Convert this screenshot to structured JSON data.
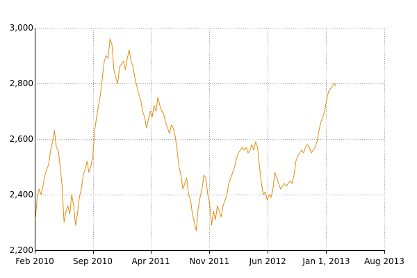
{
  "chart_data": {
    "type": "line",
    "title": "",
    "xlabel": "",
    "ylabel": "",
    "grid": true,
    "legend": "none",
    "line_color": "#e08a0a",
    "grid_color": "#999999",
    "ylim": [
      2200,
      3000
    ],
    "xlim": [
      "2010-02-01",
      "2013-08-01"
    ],
    "y_ticks": [
      {
        "value": 2200,
        "label": "2,200"
      },
      {
        "value": 2400,
        "label": "2,400"
      },
      {
        "value": 2600,
        "label": "2,600"
      },
      {
        "value": 2800,
        "label": "2,800"
      },
      {
        "value": 3000,
        "label": "3,000"
      }
    ],
    "x_ticks": [
      {
        "date": "2010-02-01",
        "label": "Feb 2010"
      },
      {
        "date": "2010-09-01",
        "label": "Sep 2010"
      },
      {
        "date": "2011-04-01",
        "label": "Apr 2011"
      },
      {
        "date": "2011-11-01",
        "label": "Nov 2011"
      },
      {
        "date": "2012-06-01",
        "label": "Jun 2012"
      },
      {
        "date": "2013-01-01",
        "label": "Jan 1, 2013"
      },
      {
        "date": "2013-08-01",
        "label": "Aug 2013"
      }
    ],
    "series": [
      {
        "points": [
          [
            "2010-02-03",
            2310
          ],
          [
            "2010-02-10",
            2390
          ],
          [
            "2010-02-17",
            2420
          ],
          [
            "2010-02-24",
            2400
          ],
          [
            "2010-03-03",
            2430
          ],
          [
            "2010-03-10",
            2470
          ],
          [
            "2010-03-17",
            2490
          ],
          [
            "2010-03-24",
            2510
          ],
          [
            "2010-03-31",
            2560
          ],
          [
            "2010-04-07",
            2590
          ],
          [
            "2010-04-14",
            2630
          ],
          [
            "2010-04-21",
            2570
          ],
          [
            "2010-04-28",
            2560
          ],
          [
            "2010-05-05",
            2500
          ],
          [
            "2010-05-12",
            2430
          ],
          [
            "2010-05-19",
            2300
          ],
          [
            "2010-05-26",
            2340
          ],
          [
            "2010-06-02",
            2360
          ],
          [
            "2010-06-09",
            2330
          ],
          [
            "2010-06-16",
            2400
          ],
          [
            "2010-06-23",
            2360
          ],
          [
            "2010-06-30",
            2290
          ],
          [
            "2010-07-07",
            2330
          ],
          [
            "2010-07-14",
            2390
          ],
          [
            "2010-07-21",
            2420
          ],
          [
            "2010-07-28",
            2470
          ],
          [
            "2010-08-04",
            2490
          ],
          [
            "2010-08-11",
            2520
          ],
          [
            "2010-08-18",
            2480
          ],
          [
            "2010-08-25",
            2500
          ],
          [
            "2010-09-01",
            2540
          ],
          [
            "2010-09-08",
            2630
          ],
          [
            "2010-09-15",
            2680
          ],
          [
            "2010-09-22",
            2720
          ],
          [
            "2010-09-29",
            2760
          ],
          [
            "2010-10-06",
            2820
          ],
          [
            "2010-10-13",
            2880
          ],
          [
            "2010-10-20",
            2900
          ],
          [
            "2010-10-27",
            2890
          ],
          [
            "2010-11-03",
            2960
          ],
          [
            "2010-11-10",
            2940
          ],
          [
            "2010-11-17",
            2850
          ],
          [
            "2010-11-24",
            2820
          ],
          [
            "2010-12-01",
            2800
          ],
          [
            "2010-12-08",
            2860
          ],
          [
            "2010-12-15",
            2870
          ],
          [
            "2010-12-22",
            2880
          ],
          [
            "2010-12-29",
            2850
          ],
          [
            "2011-01-05",
            2890
          ],
          [
            "2011-01-12",
            2920
          ],
          [
            "2011-01-19",
            2880
          ],
          [
            "2011-01-26",
            2860
          ],
          [
            "2011-02-02",
            2820
          ],
          [
            "2011-02-09",
            2790
          ],
          [
            "2011-02-16",
            2760
          ],
          [
            "2011-02-23",
            2740
          ],
          [
            "2011-03-02",
            2700
          ],
          [
            "2011-03-09",
            2680
          ],
          [
            "2011-03-16",
            2640
          ],
          [
            "2011-03-23",
            2670
          ],
          [
            "2011-03-30",
            2700
          ],
          [
            "2011-04-06",
            2680
          ],
          [
            "2011-04-13",
            2720
          ],
          [
            "2011-04-20",
            2700
          ],
          [
            "2011-04-27",
            2750
          ],
          [
            "2011-05-04",
            2720
          ],
          [
            "2011-05-11",
            2700
          ],
          [
            "2011-05-18",
            2690
          ],
          [
            "2011-05-25",
            2660
          ],
          [
            "2011-06-01",
            2640
          ],
          [
            "2011-06-08",
            2620
          ],
          [
            "2011-06-15",
            2650
          ],
          [
            "2011-06-22",
            2640
          ],
          [
            "2011-06-29",
            2610
          ],
          [
            "2011-07-06",
            2560
          ],
          [
            "2011-07-13",
            2500
          ],
          [
            "2011-07-20",
            2470
          ],
          [
            "2011-07-27",
            2420
          ],
          [
            "2011-08-03",
            2440
          ],
          [
            "2011-08-10",
            2460
          ],
          [
            "2011-08-17",
            2400
          ],
          [
            "2011-08-24",
            2380
          ],
          [
            "2011-08-31",
            2330
          ],
          [
            "2011-09-07",
            2300
          ],
          [
            "2011-09-14",
            2270
          ],
          [
            "2011-09-21",
            2350
          ],
          [
            "2011-09-28",
            2390
          ],
          [
            "2011-10-05",
            2420
          ],
          [
            "2011-10-12",
            2470
          ],
          [
            "2011-10-19",
            2460
          ],
          [
            "2011-10-26",
            2400
          ],
          [
            "2011-11-02",
            2370
          ],
          [
            "2011-11-09",
            2290
          ],
          [
            "2011-11-16",
            2340
          ],
          [
            "2011-11-23",
            2310
          ],
          [
            "2011-11-30",
            2360
          ],
          [
            "2011-12-07",
            2340
          ],
          [
            "2011-12-14",
            2320
          ],
          [
            "2011-12-21",
            2360
          ],
          [
            "2011-12-28",
            2380
          ],
          [
            "2012-01-04",
            2400
          ],
          [
            "2012-01-11",
            2440
          ],
          [
            "2012-01-18",
            2460
          ],
          [
            "2012-01-25",
            2480
          ],
          [
            "2012-02-01",
            2500
          ],
          [
            "2012-02-08",
            2530
          ],
          [
            "2012-02-15",
            2550
          ],
          [
            "2012-02-22",
            2560
          ],
          [
            "2012-02-29",
            2570
          ],
          [
            "2012-03-07",
            2560
          ],
          [
            "2012-03-14",
            2570
          ],
          [
            "2012-03-21",
            2550
          ],
          [
            "2012-03-28",
            2560
          ],
          [
            "2012-04-04",
            2580
          ],
          [
            "2012-04-11",
            2560
          ],
          [
            "2012-04-18",
            2590
          ],
          [
            "2012-04-25",
            2570
          ],
          [
            "2012-05-02",
            2500
          ],
          [
            "2012-05-09",
            2440
          ],
          [
            "2012-05-16",
            2400
          ],
          [
            "2012-05-23",
            2410
          ],
          [
            "2012-05-30",
            2380
          ],
          [
            "2012-06-06",
            2400
          ],
          [
            "2012-06-13",
            2390
          ],
          [
            "2012-06-20",
            2420
          ],
          [
            "2012-06-27",
            2480
          ],
          [
            "2012-07-04",
            2460
          ],
          [
            "2012-07-11",
            2440
          ],
          [
            "2012-07-18",
            2420
          ],
          [
            "2012-07-25",
            2430
          ],
          [
            "2012-08-01",
            2440
          ],
          [
            "2012-08-08",
            2430
          ],
          [
            "2012-08-15",
            2440
          ],
          [
            "2012-08-22",
            2450
          ],
          [
            "2012-08-29",
            2440
          ],
          [
            "2012-09-05",
            2470
          ],
          [
            "2012-09-12",
            2520
          ],
          [
            "2012-09-19",
            2540
          ],
          [
            "2012-09-26",
            2550
          ],
          [
            "2012-10-03",
            2560
          ],
          [
            "2012-10-10",
            2550
          ],
          [
            "2012-10-17",
            2570
          ],
          [
            "2012-10-24",
            2580
          ],
          [
            "2012-10-31",
            2570
          ],
          [
            "2012-11-07",
            2550
          ],
          [
            "2012-11-14",
            2560
          ],
          [
            "2012-11-21",
            2570
          ],
          [
            "2012-11-28",
            2590
          ],
          [
            "2012-12-05",
            2630
          ],
          [
            "2012-12-12",
            2660
          ],
          [
            "2012-12-19",
            2680
          ],
          [
            "2012-12-26",
            2700
          ],
          [
            "2013-01-02",
            2740
          ],
          [
            "2013-01-09",
            2770
          ],
          [
            "2013-01-16",
            2780
          ],
          [
            "2013-01-23",
            2790
          ],
          [
            "2013-01-30",
            2800
          ],
          [
            "2013-02-06",
            2790
          ]
        ]
      }
    ]
  }
}
